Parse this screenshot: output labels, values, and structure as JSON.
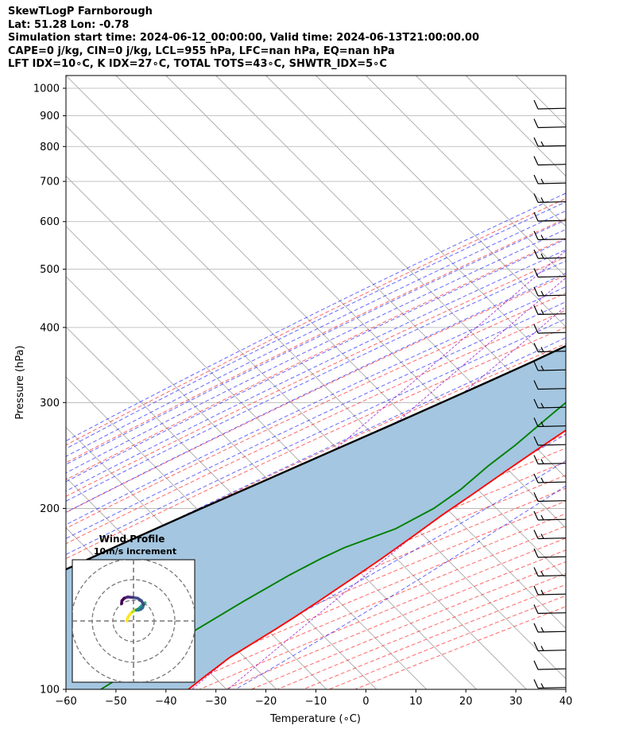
{
  "header": {
    "title": "SkewTLogP Farnborough",
    "location": "Lat: 51.28   Lon: -0.78",
    "times": "Simulation start time: 2024-06-12_00:00:00, Valid time: 2024-06-13T21:00:00.00",
    "indices1": "CAPE=0 j/kg, CIN=0 j/kg, LCL=955 hPa, LFC=nan hPa, EQ=nan hPa",
    "indices2": "LFT IDX=10∘C, K IDX=27∘C, TOTAL TOTS=43∘C, SHWTR_IDX=5∘C"
  },
  "chart_data": [
    {
      "type": "line",
      "subtype": "skew-t log-p",
      "xlabel": "Temperature (∘C)",
      "ylabel": "Pressure (hPa)",
      "xlim": [
        -60,
        40
      ],
      "ylim": [
        1050,
        100
      ],
      "y_scale": "log",
      "x_ticks": [
        -60,
        -50,
        -40,
        -30,
        -20,
        -10,
        0,
        10,
        20,
        30,
        40
      ],
      "x_tick_labels": [
        "−60",
        "−50",
        "−40",
        "−30",
        "−20",
        "−10",
        "0",
        "10",
        "20",
        "30",
        "40"
      ],
      "y_ticks": [
        1000,
        900,
        800,
        700,
        600,
        500,
        400,
        300,
        200,
        100
      ],
      "y_tick_labels": [
        "1000",
        "900",
        "800",
        "700",
        "600",
        "500",
        "400",
        "300",
        "200",
        "100"
      ],
      "grid": true,
      "colors": {
        "temperature": "#ff0000",
        "dewpoint": "#008000",
        "parcel": "#000000",
        "shade": "#a4c6e0",
        "dry_adiabat": "#ff0000",
        "moist_adiabat": "#0000ff",
        "mixing_ratio": "#8b00c8",
        "isotherm": "#aaaaaa"
      },
      "series": [
        {
          "key": "temperature",
          "points": [
            [
              12.5,
              1000
            ],
            [
              11,
              975
            ],
            [
              10.8,
              950
            ],
            [
              10.7,
              925
            ],
            [
              11.2,
              900
            ],
            [
              11.6,
              875
            ],
            [
              11.4,
              850
            ],
            [
              11.3,
              800
            ],
            [
              10.9,
              750
            ],
            [
              10.6,
              700
            ],
            [
              10.2,
              650
            ],
            [
              9.6,
              600
            ],
            [
              8.6,
              550
            ],
            [
              7.6,
              525
            ],
            [
              6.4,
              500
            ],
            [
              3.5,
              460
            ],
            [
              1.2,
              430
            ],
            [
              -0.6,
              400
            ],
            [
              -2.6,
              370
            ],
            [
              -4.5,
              350
            ],
            [
              -6.5,
              330
            ],
            [
              -8.8,
              300
            ],
            [
              -11.5,
              270
            ],
            [
              -13.5,
              250
            ],
            [
              -15.5,
              230
            ],
            [
              -17.6,
              210
            ],
            [
              -19.4,
              195
            ],
            [
              -21,
              180
            ],
            [
              -22.9,
              165
            ],
            [
              -24.4,
              155
            ],
            [
              -25.6,
              148
            ],
            [
              -27,
              140
            ],
            [
              -28.6,
              132
            ],
            [
              -30,
              126
            ],
            [
              -31.6,
              120
            ],
            [
              -33.6,
              113
            ],
            [
              -34.8,
              105
            ],
            [
              -35.5,
              100
            ]
          ]
        },
        {
          "key": "dewpoint",
          "points": [
            [
              10.3,
              1000
            ],
            [
              10.6,
              950
            ],
            [
              11.4,
              900
            ],
            [
              11.8,
              850
            ],
            [
              11.1,
              800
            ],
            [
              10,
              750
            ],
            [
              8.8,
              700
            ],
            [
              5,
              675
            ],
            [
              -3.6,
              630
            ],
            [
              -7.4,
              600
            ],
            [
              -8.8,
              570
            ],
            [
              -9.4,
              550
            ],
            [
              -10.2,
              520
            ],
            [
              -11.5,
              500
            ],
            [
              -11,
              480
            ],
            [
              -12.5,
              450
            ],
            [
              -15.5,
              420
            ],
            [
              -17.6,
              390
            ],
            [
              -17.4,
              370
            ],
            [
              -16.6,
              345
            ],
            [
              -16.6,
              330
            ],
            [
              -16.7,
              310
            ],
            [
              -17.6,
              285
            ],
            [
              -18.7,
              255
            ],
            [
              -20,
              235
            ],
            [
              -20.8,
              215
            ],
            [
              -22.4,
              200
            ],
            [
              -26,
              185
            ],
            [
              -32.5,
              172
            ],
            [
              -35,
              165
            ],
            [
              -38,
              155
            ],
            [
              -42,
              140
            ],
            [
              -46,
              125
            ],
            [
              -53,
              100
            ]
          ]
        },
        {
          "key": "parcel",
          "points": [
            [
              12.3,
              990
            ],
            [
              11.5,
              960
            ],
            [
              10.6,
              955
            ],
            [
              9.4,
              900
            ],
            [
              8,
              850
            ],
            [
              6.3,
              800
            ],
            [
              4.3,
              750
            ],
            [
              1.6,
              700
            ],
            [
              -1.2,
              650
            ],
            [
              -4.3,
              600
            ],
            [
              -8,
              550
            ],
            [
              -12.3,
              500
            ],
            [
              -17.7,
              450
            ],
            [
              -24.2,
              400
            ],
            [
              -27.9,
              375
            ],
            [
              -32,
              350
            ],
            [
              -36.7,
              325
            ],
            [
              -41.9,
              300
            ],
            [
              -47.6,
              275
            ],
            [
              -54,
              250
            ],
            [
              -61,
              225
            ],
            [
              -68.9,
              200
            ],
            [
              -77.6,
              175
            ],
            [
              -87.3,
              150
            ],
            [
              -98.4,
              125
            ],
            [
              -111.4,
              100
            ]
          ]
        }
      ],
      "wind_barbs": {
        "count": 32,
        "side": "right"
      },
      "inset": {
        "title": "Wind Profile",
        "subtitle": "10m/s increment",
        "type": "hodograph",
        "colormap": "viridis",
        "points": [
          [
            -3.2,
            0
          ],
          [
            -2.8,
            1.6
          ],
          [
            -1.6,
            3.4
          ],
          [
            -0.5,
            4.4
          ],
          [
            0.8,
            5.3
          ],
          [
            2.2,
            5.8
          ],
          [
            3.5,
            6.2
          ],
          [
            4.6,
            7.2
          ],
          [
            5.6,
            8.8
          ],
          [
            5.0,
            8.2
          ],
          [
            4.0,
            7.4
          ],
          [
            3.0,
            6.4
          ],
          [
            2.2,
            5.6
          ],
          [
            1.4,
            5.2
          ],
          [
            2.5,
            5.3
          ],
          [
            3.5,
            5.6
          ],
          [
            4.4,
            6.4
          ],
          [
            4.9,
            8.0
          ],
          [
            3.8,
            9.8
          ],
          [
            2.0,
            11.0
          ],
          [
            -0.5,
            11.4
          ],
          [
            -2.8,
            11.6
          ],
          [
            -4.5,
            11.0
          ],
          [
            -5.6,
            9.8
          ],
          [
            -5.8,
            8.3
          ]
        ]
      }
    }
  ]
}
